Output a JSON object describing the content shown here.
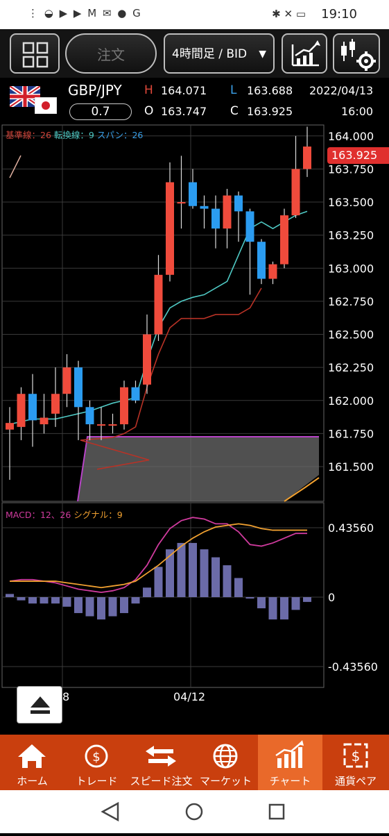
{
  "status": {
    "left_icons": "⋮ ◒ ▶ ▶ M ✉ ● G",
    "right_icons": "✱ ✕ ▭",
    "time": "19:10"
  },
  "toolbar": {
    "order_label": "注文",
    "timeframe_label": "4時間足 / BID"
  },
  "instrument": {
    "pair": "GBP/JPY",
    "spread": "0.7",
    "high_label": "H",
    "high": "164.071",
    "low_label": "L",
    "low": "163.688",
    "open_label": "O",
    "open": "163.747",
    "close_label": "C",
    "close": "163.925",
    "date": "2022/04/13",
    "time": "16:00"
  },
  "ichimoku": {
    "kijun": "基準線：26",
    "tenkan": "転換線：9",
    "span": "スパン：26"
  },
  "macd": {
    "label": "MACD：12、26",
    "signal": "シグナル：9",
    "y_labels": [
      "0.43560",
      "0",
      "-0.43560"
    ]
  },
  "price_axis": [
    "164.000",
    "163.750",
    "163.500",
    "163.250",
    "163.000",
    "162.750",
    "162.500",
    "162.250",
    "162.000",
    "161.750",
    "161.500"
  ],
  "current_price": "163.925",
  "date_labels": [
    "8",
    "04/12"
  ],
  "nav": [
    {
      "label": "ホーム"
    },
    {
      "label": "トレード"
    },
    {
      "label": "スピード注文"
    },
    {
      "label": "マーケット"
    },
    {
      "label": "チャート"
    },
    {
      "label": "通貨ペア"
    }
  ],
  "colors": {
    "up": "#f04b3c",
    "down": "#2b9cf0",
    "tenkan": "#4fc9c4",
    "kijun": "#b83226",
    "cloud": "#b844c7",
    "macd": "#d03b9e",
    "signal": "#f0a030",
    "hist": "#6b6ba8",
    "nav": "#c93f0e",
    "nav_active": "#e9692a"
  },
  "chart_data": {
    "type": "candlestick",
    "ylim": [
      161.3,
      164.1
    ],
    "candles": [
      {
        "o": 161.78,
        "c": 161.83,
        "h": 161.95,
        "l": 161.4
      },
      {
        "o": 161.8,
        "c": 162.05,
        "h": 162.1,
        "l": 161.7
      },
      {
        "o": 162.05,
        "c": 161.85,
        "h": 162.2,
        "l": 161.65
      },
      {
        "o": 161.82,
        "c": 161.87,
        "h": 162.05,
        "l": 161.75
      },
      {
        "o": 161.9,
        "c": 162.05,
        "h": 162.25,
        "l": 161.8
      },
      {
        "o": 162.05,
        "c": 162.25,
        "h": 162.35,
        "l": 161.95
      },
      {
        "o": 162.25,
        "c": 161.95,
        "h": 162.3,
        "l": 161.7
      },
      {
        "o": 161.95,
        "c": 161.82,
        "h": 162.0,
        "l": 161.7
      },
      {
        "o": 161.82,
        "c": 161.82,
        "h": 161.95,
        "l": 161.7
      },
      {
        "o": 161.82,
        "c": 161.82,
        "h": 161.9,
        "l": 161.75
      },
      {
        "o": 161.82,
        "c": 162.1,
        "h": 162.15,
        "l": 161.78
      },
      {
        "o": 162.1,
        "c": 162.0,
        "h": 162.15,
        "l": 161.98
      },
      {
        "o": 162.12,
        "c": 162.5,
        "h": 162.65,
        "l": 162.05
      },
      {
        "o": 162.5,
        "c": 162.95,
        "h": 163.1,
        "l": 162.45
      },
      {
        "o": 162.95,
        "c": 163.65,
        "h": 163.8,
        "l": 162.9
      },
      {
        "o": 163.5,
        "c": 163.5,
        "h": 163.85,
        "l": 163.3
      },
      {
        "o": 163.65,
        "c": 163.47,
        "h": 163.75,
        "l": 163.45
      },
      {
        "o": 163.47,
        "c": 163.45,
        "h": 163.55,
        "l": 163.3
      },
      {
        "o": 163.45,
        "c": 163.3,
        "h": 163.55,
        "l": 163.15
      },
      {
        "o": 163.3,
        "c": 163.55,
        "h": 163.6,
        "l": 163.15
      },
      {
        "o": 163.55,
        "c": 163.43,
        "h": 163.58,
        "l": 163.2
      },
      {
        "o": 163.43,
        "c": 163.2,
        "h": 163.45,
        "l": 162.8
      },
      {
        "o": 163.2,
        "c": 162.92,
        "h": 163.22,
        "l": 162.88
      },
      {
        "o": 162.92,
        "c": 163.03,
        "h": 163.05,
        "l": 162.88
      },
      {
        "o": 163.03,
        "c": 163.4,
        "h": 163.45,
        "l": 163.0
      },
      {
        "o": 163.4,
        "c": 163.75,
        "h": 164.0,
        "l": 163.38
      },
      {
        "o": 163.75,
        "c": 163.92,
        "h": 164.07,
        "l": 163.69
      }
    ],
    "tenkan": [
      161.82,
      161.84,
      161.86,
      161.86,
      161.86,
      161.88,
      161.9,
      161.92,
      161.95,
      161.98,
      162.0,
      162.02,
      162.3,
      162.55,
      162.7,
      162.75,
      162.78,
      162.8,
      162.85,
      162.9,
      163.1,
      163.3,
      163.35,
      163.3,
      163.35,
      163.4,
      163.43
    ],
    "kijun_series": [
      161.7,
      161.72,
      161.75,
      161.8,
      162.1,
      162.35,
      162.55,
      162.62,
      162.62,
      162.62,
      162.65,
      162.65,
      162.65,
      162.7,
      162.85
    ],
    "macd": [
      0.1,
      0.11,
      0.11,
      0.1,
      0.09,
      0.07,
      0.05,
      0.04,
      0.03,
      0.04,
      0.06,
      0.11,
      0.2,
      0.33,
      0.43,
      0.48,
      0.5,
      0.49,
      0.46,
      0.46,
      0.41,
      0.33,
      0.32,
      0.34,
      0.37,
      0.4,
      0.4
    ],
    "signal": [
      0.1,
      0.1,
      0.1,
      0.1,
      0.1,
      0.09,
      0.08,
      0.07,
      0.06,
      0.07,
      0.08,
      0.1,
      0.15,
      0.2,
      0.26,
      0.32,
      0.37,
      0.41,
      0.44,
      0.45,
      0.46,
      0.45,
      0.43,
      0.42,
      0.42,
      0.42,
      0.42
    ],
    "histogram": [
      0.02,
      -0.02,
      -0.04,
      -0.04,
      -0.04,
      -0.06,
      -0.1,
      -0.12,
      -0.14,
      -0.12,
      -0.1,
      -0.04,
      0.06,
      0.19,
      0.3,
      0.34,
      0.34,
      0.3,
      0.25,
      0.2,
      0.12,
      0.0,
      -0.07,
      -0.14,
      -0.14,
      -0.08,
      -0.03
    ]
  }
}
